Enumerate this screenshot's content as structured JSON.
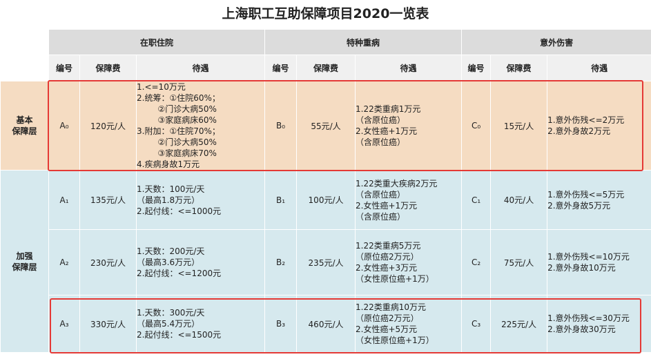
{
  "title": "上海职工互助保障项目2020一览表",
  "groups": [
    "在职住院",
    "特种重病",
    "意外伤害"
  ],
  "sub_headers": [
    "编号",
    "保障费",
    "待遇"
  ],
  "row_labels": {
    "basic": "基本\n保障层",
    "enhanced": "加强\n保障层"
  },
  "rows": [
    {
      "a_code": "A₀",
      "a_fee": "120元/人",
      "a_benefit": "1.<=10万元\n2.统筹：①住院60%；\n        ②门诊大病50%\n        ③家庭病床60%\n3.附加：①住院70%；\n        ②门诊大病50%\n        ③家庭病床70%\n4.疾病身故1万元",
      "b_code": "B₀",
      "b_fee": "55元/人",
      "b_benefit": "1.22类重病1万元\n（含原位癌）\n2.女性癌+1万元\n（含原位癌）",
      "c_code": "C₀",
      "c_fee": "15元/人",
      "c_benefit": "1.意外伤残<=2万元\n2.意外身故2万元"
    },
    {
      "a_code": "A₁",
      "a_fee": "135元/人",
      "a_benefit": "1.天数：100元/天\n（最高1.8万元）\n2.起付线：<=1000元",
      "b_code": "B₁",
      "b_fee": "100元/人",
      "b_benefit": "1.22类重大疾病2万元\n（含原位癌）\n2.女性癌+1万元\n（含原位癌）",
      "c_code": "C₁",
      "c_fee": "40元/人",
      "c_benefit": "1.意外伤残<=5万元\n2.意外身故5万元"
    },
    {
      "a_code": "A₂",
      "a_fee": "230元/人",
      "a_benefit": "1.天数：200元/天\n（最高3.6万元）\n2.起付线：<=1200元",
      "b_code": "B₂",
      "b_fee": "235元/人",
      "b_benefit": "1.22类重病5万元\n（原位癌2万元）\n2.女性癌+3万元\n（女性原位癌+1万）",
      "c_code": "C₂",
      "c_fee": "75元/人",
      "c_benefit": "1.意外伤残<=10万元\n2.意外身故10万元"
    },
    {
      "a_code": "A₃",
      "a_fee": "330元/人",
      "a_benefit": "1.天数：300元/天\n（最高5.4万元）\n2.起付线：<=1500元",
      "b_code": "B₃",
      "b_fee": "460元/人",
      "b_benefit": "1.22类重病10万元\n（原位癌2万元）\n2.女性癌+5万元\n（女性原位癌+1万）",
      "c_code": "C₃",
      "c_fee": "225元/人",
      "c_benefit": "1.意外伤残<=30万元\n2.意外身故30万元"
    }
  ],
  "colors": {
    "basic_bg": "#f5dcc2",
    "enhanced_bg": "#d6e9ee",
    "highlight": "#e53935"
  }
}
